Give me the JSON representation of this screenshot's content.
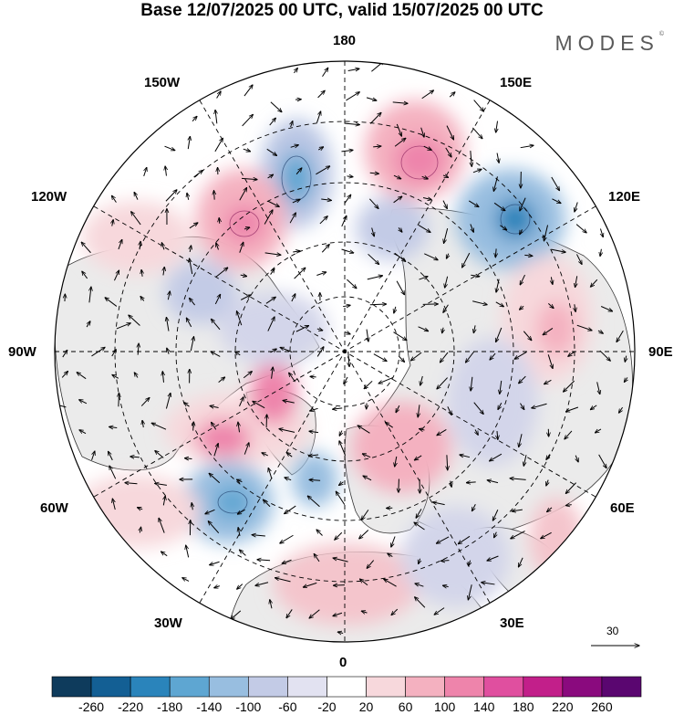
{
  "header": {
    "title": "Base 12/07/2025 00 UTC, valid 15/07/2025 00 UTC",
    "brand": "MODES",
    "brand_mark": "©"
  },
  "map": {
    "projection": "north-polar-stereographic",
    "longitude_labels": {
      "top": "180",
      "top_left": "150W",
      "top_right": "150E",
      "upper_left": "120W",
      "upper_right": "120E",
      "left": "90W",
      "right": "90E",
      "lower_left": "60W",
      "lower_right": "60E",
      "bottom_left": "30W",
      "bottom_right": "30E",
      "bottom": "0"
    },
    "reference_vector_label": "30"
  },
  "colorbar": {
    "tick_labels": [
      "-260",
      "-220",
      "-180",
      "-140",
      "-100",
      "-60",
      "-20",
      "20",
      "60",
      "100",
      "140",
      "180",
      "220",
      "260"
    ],
    "colors": [
      "#0e3b5c",
      "#135f94",
      "#2a84bb",
      "#5ea6d2",
      "#98bee0",
      "#c3cbe6",
      "#e2e2f1",
      "#ffffff",
      "#f7d8dc",
      "#f4b1c0",
      "#ee84ab",
      "#e04f9f",
      "#c21f8a",
      "#8a0a7e",
      "#5a0670"
    ],
    "land_color": "#ebebeb"
  }
}
